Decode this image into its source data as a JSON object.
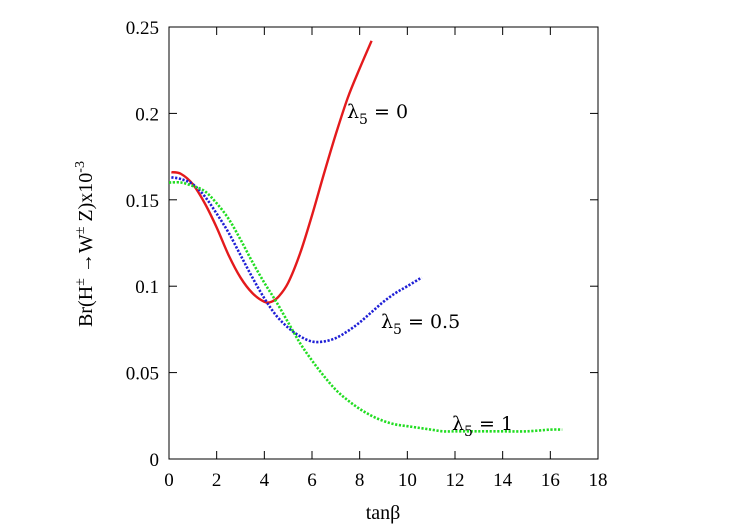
{
  "chart_data": {
    "type": "line",
    "title": "",
    "xlabel": "tanβ",
    "ylabel": {
      "prefix": "Br(H",
      "sup1": "±",
      "arrow": " →W",
      "sup2": "±",
      "mid": " Z)x10",
      "sup3": "-3"
    },
    "xlim": [
      0,
      18
    ],
    "ylim": [
      0,
      0.25
    ],
    "x_ticks": [
      "0",
      "2",
      "4",
      "6",
      "8",
      "10",
      "12",
      "14",
      "16",
      "18"
    ],
    "y_ticks": [
      "0",
      "0.05",
      "0.1",
      "0.15",
      "0.2",
      "0.25"
    ],
    "grid": false,
    "series": [
      {
        "name": "λ5 = 0",
        "label": {
          "lambda": "λ",
          "sub": "5",
          "rest": " = 0"
        },
        "color": "#e41a1c",
        "style": "solid",
        "x": [
          0.1,
          0.5,
          1.0,
          1.5,
          2.0,
          2.5,
          3.0,
          3.5,
          4.0,
          4.3,
          4.6,
          5.0,
          5.5,
          6.0,
          6.5,
          7.0,
          7.5,
          8.0,
          8.5
        ],
        "y": [
          0.166,
          0.165,
          0.159,
          0.148,
          0.134,
          0.118,
          0.105,
          0.096,
          0.091,
          0.091,
          0.094,
          0.102,
          0.119,
          0.141,
          0.165,
          0.188,
          0.209,
          0.226,
          0.242
        ]
      },
      {
        "name": "λ5 = 0.5",
        "label": {
          "lambda": "λ",
          "sub": "5",
          "rest": " = 0.5"
        },
        "color": "#1f1fd6",
        "style": "dotted",
        "x": [
          0.1,
          0.5,
          1.0,
          1.5,
          2.0,
          2.5,
          3.0,
          3.5,
          4.0,
          4.5,
          5.0,
          5.5,
          6.0,
          6.5,
          7.0,
          7.5,
          8.0,
          8.5,
          9.0,
          9.5,
          10.0,
          10.6
        ],
        "y": [
          0.163,
          0.162,
          0.159,
          0.152,
          0.142,
          0.131,
          0.118,
          0.105,
          0.093,
          0.083,
          0.076,
          0.071,
          0.068,
          0.068,
          0.07,
          0.074,
          0.079,
          0.085,
          0.091,
          0.096,
          0.1,
          0.105
        ]
      },
      {
        "name": "λ5 = 1",
        "label": {
          "lambda": "λ",
          "sub": "5",
          "rest": " = 1"
        },
        "color": "#22dd22",
        "style": "dotted",
        "x": [
          0.0,
          0.5,
          1.0,
          1.5,
          2.0,
          2.5,
          3.0,
          3.5,
          4.0,
          4.5,
          5.0,
          5.5,
          6.0,
          6.5,
          7.0,
          7.5,
          8.0,
          8.5,
          9.0,
          9.5,
          10.0,
          10.5,
          11.0,
          11.5,
          12.0,
          13.0,
          14.0,
          15.0,
          16.0,
          16.5
        ],
        "y": [
          0.16,
          0.16,
          0.158,
          0.155,
          0.148,
          0.139,
          0.127,
          0.114,
          0.102,
          0.091,
          0.079,
          0.067,
          0.057,
          0.048,
          0.04,
          0.034,
          0.029,
          0.025,
          0.022,
          0.02,
          0.019,
          0.018,
          0.017,
          0.016,
          0.016,
          0.016,
          0.016,
          0.016,
          0.017,
          0.017
        ]
      }
    ]
  }
}
